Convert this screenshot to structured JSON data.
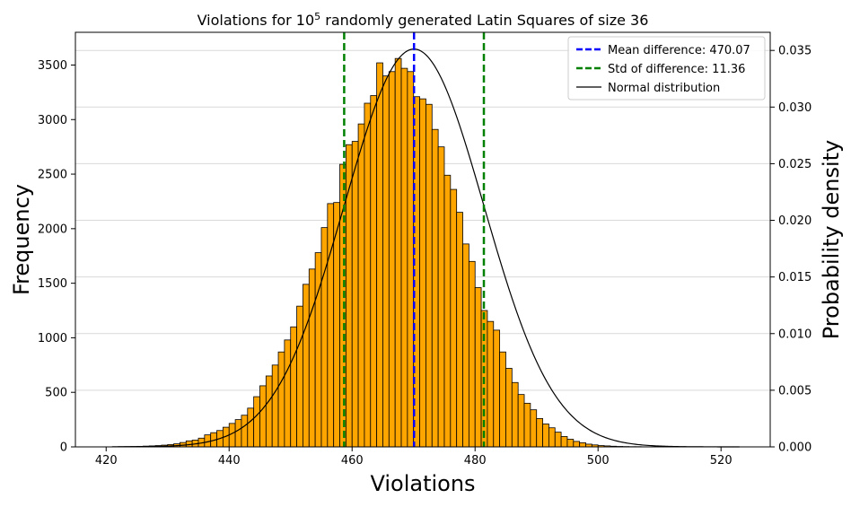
{
  "chart_data": {
    "type": "bar",
    "title": "Violations for 10",
    "title_superscript": "5",
    "title_suffix": " randomly generated Latin Squares of size 36",
    "xlabel": "Violations",
    "ylabel": "Frequency",
    "y2label": "Probability density",
    "xlim": [
      415,
      528
    ],
    "ylim": [
      0,
      3800
    ],
    "y2lim": [
      0,
      0.0366
    ],
    "x_ticks": [
      420,
      440,
      460,
      480,
      500,
      520
    ],
    "y_ticks": [
      0,
      500,
      1000,
      1500,
      2000,
      2500,
      3000,
      3500
    ],
    "y2_ticks": [
      0.0,
      0.005,
      0.01,
      0.015,
      0.02,
      0.025,
      0.03,
      0.035
    ],
    "y2_tick_labels": [
      "0.000",
      "0.005",
      "0.010",
      "0.015",
      "0.020",
      "0.025",
      "0.030",
      "0.035"
    ],
    "grid": "horizontal (right axis)",
    "bar_color": "#ffa500",
    "bar_edge_color": "#000000",
    "hist_start": 421,
    "bin_width": 1.0,
    "counts": [
      2,
      3,
      3,
      4,
      5,
      7,
      9,
      12,
      16,
      21,
      28,
      40,
      55,
      62,
      80,
      110,
      130,
      150,
      180,
      215,
      250,
      290,
      355,
      460,
      560,
      650,
      750,
      870,
      980,
      1100,
      1290,
      1490,
      1630,
      1780,
      2010,
      2230,
      2240,
      2590,
      2770,
      2800,
      2960,
      3150,
      3220,
      3520,
      3400,
      3440,
      3560,
      3470,
      3440,
      3210,
      3190,
      3140,
      2910,
      2750,
      2490,
      2360,
      2150,
      1860,
      1700,
      1460,
      1250,
      1150,
      1070,
      870,
      720,
      590,
      480,
      400,
      340,
      260,
      210,
      175,
      135,
      95,
      70,
      50,
      38,
      25,
      18,
      12,
      9,
      6,
      4,
      3,
      2,
      2,
      1,
      1,
      1,
      1,
      1,
      1,
      1,
      1,
      1,
      1,
      1,
      1,
      1,
      1,
      1,
      1
    ],
    "normal_distribution": {
      "mean": 470.07,
      "std": 11.36,
      "peak_density": 0.0351,
      "x_range": [
        421,
        523
      ]
    },
    "reference_lines": [
      {
        "name": "Mean difference: 470.07",
        "x": 470.07,
        "color": "#0000ff",
        "style": "dashed"
      },
      {
        "name": "Std of difference: 11.36",
        "x": [
          458.71,
          481.43
        ],
        "color": "#008000",
        "style": "dashed"
      }
    ],
    "legend": {
      "position": "top-right",
      "entries": [
        {
          "label": "Mean difference: 470.07",
          "color": "#0000ff",
          "style": "dashed"
        },
        {
          "label": "Std of difference: 11.36",
          "color": "#008000",
          "style": "dashed"
        },
        {
          "label": "Normal distribution",
          "color": "#000000",
          "style": "solid"
        }
      ]
    }
  }
}
